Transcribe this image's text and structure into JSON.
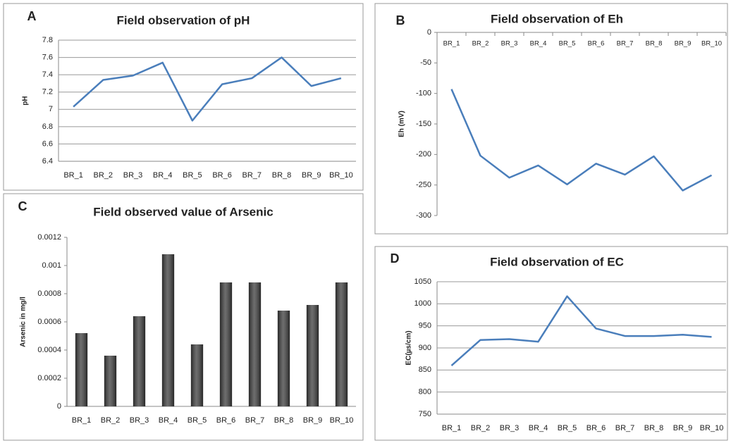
{
  "chart_data": [
    {
      "type": "line",
      "label": "A",
      "title": "Field observation of pH",
      "y_label": "pH",
      "categories": [
        "BR_1",
        "BR_2",
        "BR_3",
        "BR_4",
        "BR_5",
        "BR_6",
        "BR_7",
        "BR_8",
        "BR_9",
        "BR_10"
      ],
      "values": [
        7.03,
        7.34,
        7.39,
        7.54,
        6.87,
        7.29,
        7.36,
        7.6,
        7.27,
        7.36
      ],
      "color": "#4a7ebb",
      "ylim": [
        6.4,
        7.8
      ],
      "yticks": [
        6.4,
        6.6,
        6.8,
        7,
        7.2,
        7.4,
        7.6,
        7.8
      ],
      "grid": true,
      "x_axis_position": "bottom"
    },
    {
      "type": "line",
      "label": "B",
      "title": "Field observation of Eh",
      "y_label": "Eh (mV)",
      "categories": [
        "BR_1",
        "BR_2",
        "BR_3",
        "BR_4",
        "BR_5",
        "BR_6",
        "BR_7",
        "BR_8",
        "BR_9",
        "BR_10"
      ],
      "values": [
        -93,
        -202,
        -238,
        -218,
        -249,
        -215,
        -233,
        -203,
        -259,
        -234
      ],
      "color": "#4a7ebb",
      "ylim": [
        -300,
        0
      ],
      "yticks": [
        -300,
        -250,
        -200,
        -150,
        -100,
        -50,
        0
      ],
      "grid": false,
      "x_axis_position": "top"
    },
    {
      "type": "bar",
      "label": "C",
      "title": "Field observed value of Arsenic",
      "y_label": "Arsenic in mg/l",
      "categories": [
        "BR_1",
        "BR_2",
        "BR_3",
        "BR_4",
        "BR_5",
        "BR_6",
        "BR_7",
        "BR_8",
        "BR_9",
        "BR_10"
      ],
      "values": [
        0.00052,
        0.00036,
        0.00064,
        0.00108,
        0.00044,
        0.00088,
        0.00088,
        0.00068,
        0.00072,
        0.00088
      ],
      "color": "#3c3c3c",
      "ylim": [
        0,
        0.0012
      ],
      "yticks": [
        0,
        0.0002,
        0.0004,
        0.0006,
        0.0008,
        0.001,
        0.0012
      ],
      "grid": false,
      "x_axis_position": "bottom"
    },
    {
      "type": "line",
      "label": "D",
      "title": "Field observation  of EC",
      "y_label": "EC(µs/cm)",
      "categories": [
        "BR_1",
        "BR_2",
        "BR_3",
        "BR_4",
        "BR_5",
        "BR_6",
        "BR_7",
        "BR_8",
        "BR_9",
        "BR_10"
      ],
      "values": [
        860,
        918,
        920,
        914,
        1017,
        944,
        927,
        927,
        930,
        925
      ],
      "color": "#4a7ebb",
      "ylim": [
        750,
        1050
      ],
      "yticks": [
        750,
        800,
        850,
        900,
        950,
        1000,
        1050
      ],
      "grid": true,
      "x_axis_position": "bottom"
    }
  ]
}
